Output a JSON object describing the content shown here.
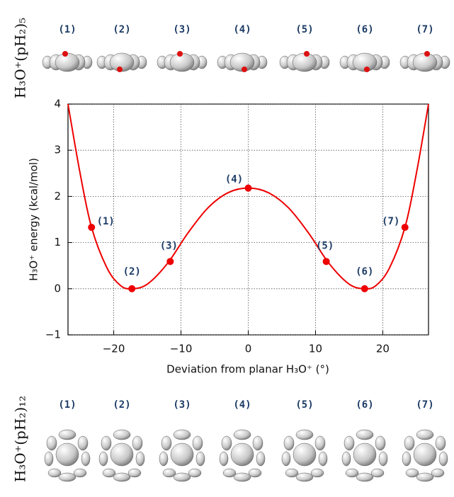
{
  "chart_data": {
    "type": "line",
    "xlabel": "Deviation from planar H₃O⁺ (°)",
    "ylabel": "H₃O⁺ energy (kcal/mol)",
    "xlim": [
      -26.8,
      26.8
    ],
    "ylim": [
      -1,
      4
    ],
    "xticks": [
      {
        "value": -20,
        "label": "−20"
      },
      {
        "value": -10,
        "label": "−10"
      },
      0,
      10,
      20
    ],
    "yticks": [
      {
        "value": -1,
        "label": "−1"
      },
      0,
      1,
      2,
      3,
      4
    ],
    "grid": true,
    "series": [
      {
        "color": "#ee0000",
        "marker": false,
        "x": [
          -26.8,
          -25,
          -23.3,
          -21,
          -19,
          -17.3,
          -15,
          -12,
          -9,
          -6,
          -3,
          0,
          3,
          6,
          9,
          12,
          15,
          17.3,
          19,
          21,
          23.3,
          25,
          26.8
        ],
        "values": [
          4.0,
          2.5,
          1.33,
          0.45,
          0.07,
          0,
          0.1,
          0.55,
          1.2,
          1.75,
          2.08,
          2.18,
          2.08,
          1.75,
          1.2,
          0.55,
          0.1,
          0,
          0.07,
          0.45,
          1.33,
          2.5,
          4.0
        ]
      },
      {
        "color": "#ee0000",
        "marker": true,
        "x": [
          -23.3,
          -17.3,
          -11.6,
          0,
          11.6,
          17.3,
          23.3
        ],
        "values": [
          1.33,
          0,
          0.59,
          2.18,
          0.59,
          0,
          1.33
        ],
        "point_labels": [
          "(1)",
          "(2)",
          "(3)",
          "(4)",
          "(5)",
          "(6)",
          "(7)"
        ]
      }
    ]
  },
  "top_panel": {
    "title": "H₃O⁺(pH₂)₅",
    "labels": [
      "(1)",
      "(2)",
      "(3)",
      "(4)",
      "(5)",
      "(6)",
      "(7)"
    ]
  },
  "bottom_panel": {
    "title": "H₃O⁺(pH₂)₁₂",
    "labels": [
      "(1)",
      "(2)",
      "(3)",
      "(4)",
      "(5)",
      "(6)",
      "(7)"
    ]
  }
}
